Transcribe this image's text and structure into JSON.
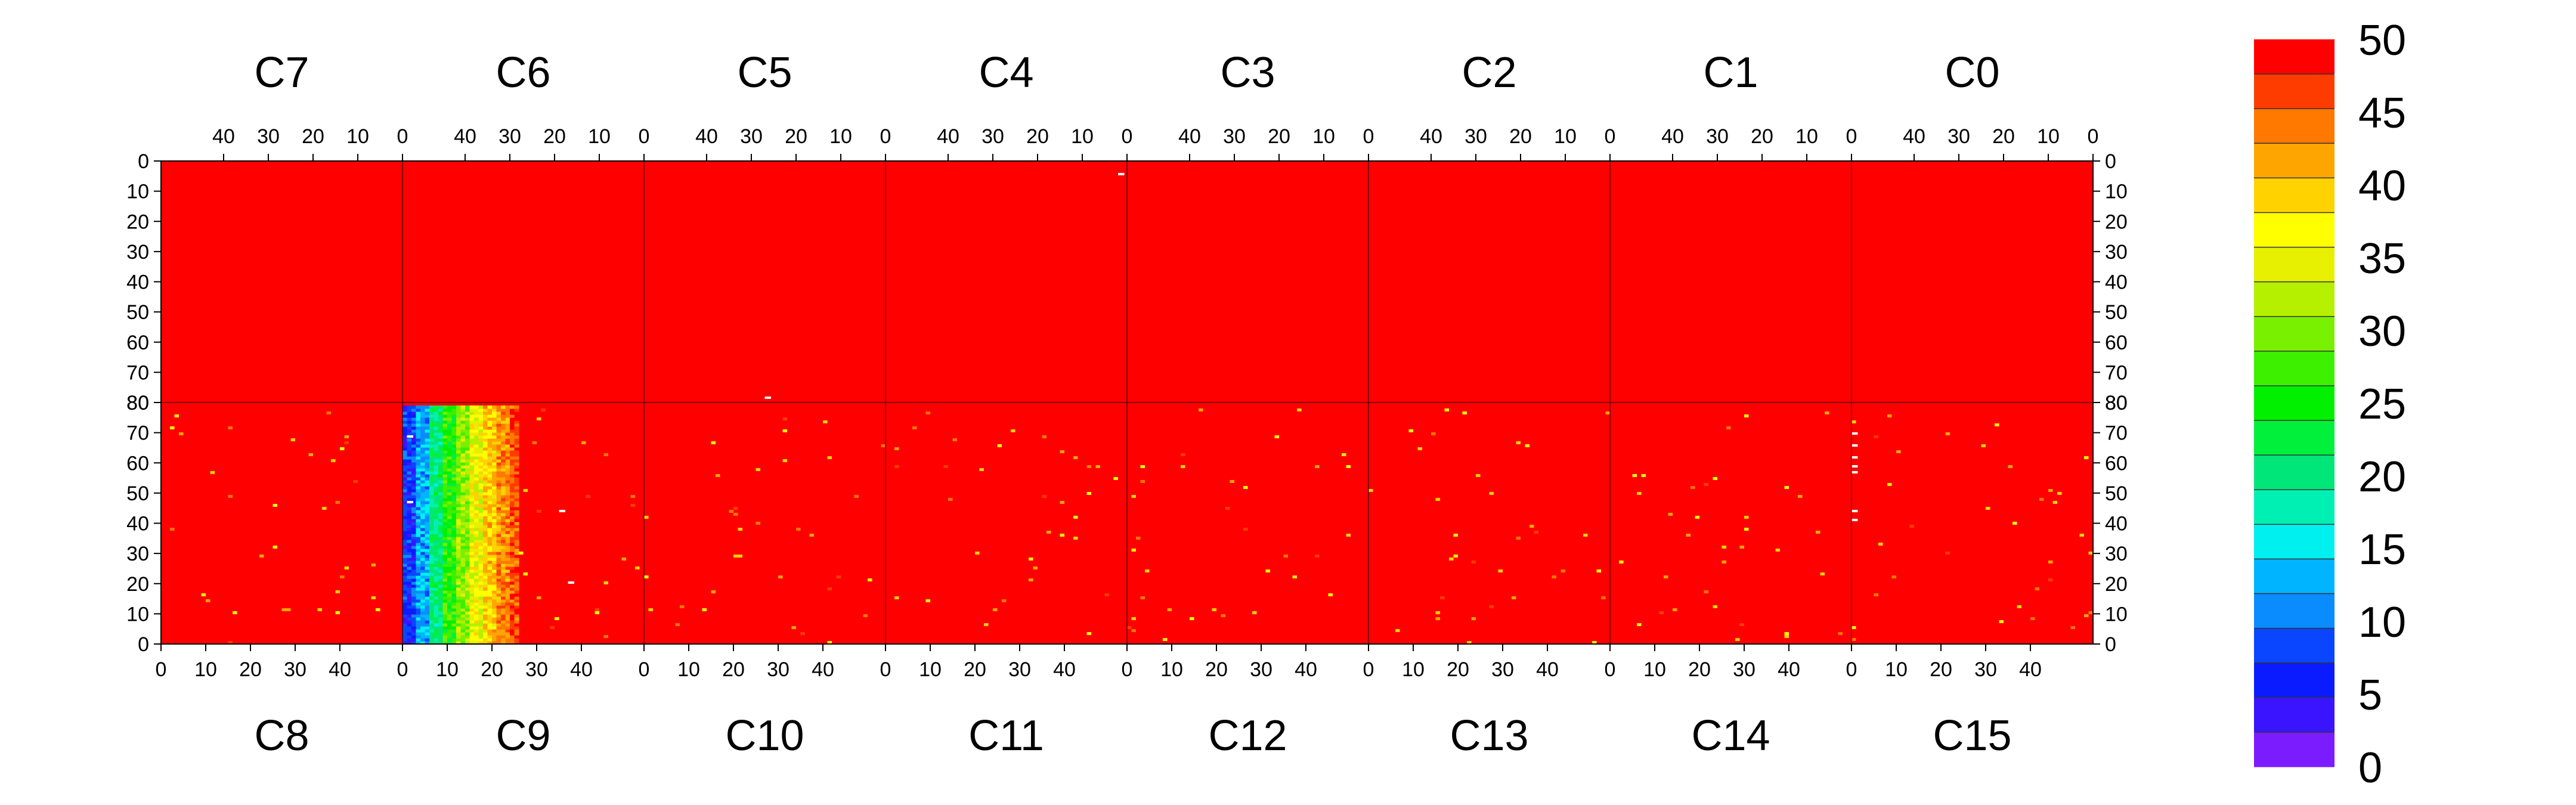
{
  "chart_data": {
    "type": "heatmap",
    "title": "",
    "xlabel": "",
    "ylabel": "",
    "colorbar": {
      "min": 0,
      "max": 50,
      "ticks": [
        "0",
        "5",
        "10",
        "15",
        "20",
        "25",
        "30",
        "35",
        "40",
        "45",
        "50"
      ],
      "colors": [
        "#7a1cff",
        "#3a14ff",
        "#0a1cff",
        "#0a46ff",
        "#0a8cff",
        "#00b4ff",
        "#00f0f0",
        "#00f0b4",
        "#00e678",
        "#00f03c",
        "#00f000",
        "#3cf000",
        "#78f000",
        "#b4f000",
        "#e6f000",
        "#ffff00",
        "#ffd200",
        "#ffa500",
        "#ff7800",
        "#ff3c00",
        "#ff0000"
      ]
    },
    "background_value": 50,
    "top_panels": {
      "labels": [
        "C7",
        "C6",
        "C5",
        "C4",
        "C3",
        "C2",
        "C1",
        "C0"
      ],
      "x_ticks": [
        "40",
        "30",
        "20",
        "10",
        "0"
      ],
      "y_ticks": [
        "0",
        "10",
        "20",
        "30",
        "40",
        "50",
        "60",
        "70",
        "80"
      ],
      "x_direction": "decreasing",
      "y_direction": "downward",
      "values": "uniform 50"
    },
    "bottom_panels": {
      "labels": [
        "C8",
        "C9",
        "C10",
        "C11",
        "C12",
        "C13",
        "C14",
        "C15"
      ],
      "x_ticks": [
        "0",
        "10",
        "20",
        "30",
        "40"
      ],
      "y_ticks": [
        "80",
        "70",
        "60",
        "50",
        "40",
        "30",
        "20",
        "10",
        "0"
      ],
      "x_direction": "increasing",
      "y_direction": "upward",
      "values": "mostly 50 with sparse scattered lower cells"
    },
    "gradient_panel": {
      "panel": "C9",
      "rows": "0-79",
      "gradient_columns": [
        {
          "col_range": [
            0,
            3
          ],
          "value": 6
        },
        {
          "col_range": [
            3,
            6
          ],
          "value": 12
        },
        {
          "col_range": [
            6,
            9
          ],
          "value": 20
        },
        {
          "col_range": [
            9,
            12
          ],
          "value": 26
        },
        {
          "col_range": [
            12,
            15
          ],
          "value": 31
        },
        {
          "col_range": [
            15,
            18
          ],
          "value": 36
        },
        {
          "col_range": [
            18,
            21
          ],
          "value": 40
        },
        {
          "col_range": [
            21,
            24
          ],
          "value": 44
        },
        {
          "col_range": [
            24,
            26
          ],
          "value": 47
        }
      ]
    },
    "empty_cells": [
      {
        "panel": "C4",
        "col": 1,
        "row": 4
      },
      {
        "panel": "C5",
        "col": 26,
        "row": 79
      },
      {
        "panel": "C15",
        "col": 0,
        "row": 70
      },
      {
        "panel": "C15",
        "col": 0,
        "row": 66
      },
      {
        "panel": "C15",
        "col": 0,
        "row": 62
      },
      {
        "panel": "C15",
        "col": 0,
        "row": 59
      },
      {
        "panel": "C15",
        "col": 0,
        "row": 57
      },
      {
        "panel": "C15",
        "col": 0,
        "row": 44
      },
      {
        "panel": "C15",
        "col": 0,
        "row": 41
      },
      {
        "panel": "C9",
        "col": 1,
        "row": 69
      },
      {
        "panel": "C9",
        "col": 1,
        "row": 47
      },
      {
        "panel": "C9",
        "col": 37,
        "row": 20
      },
      {
        "panel": "C9",
        "col": 35,
        "row": 44
      }
    ],
    "legend": "colorbar at right"
  }
}
